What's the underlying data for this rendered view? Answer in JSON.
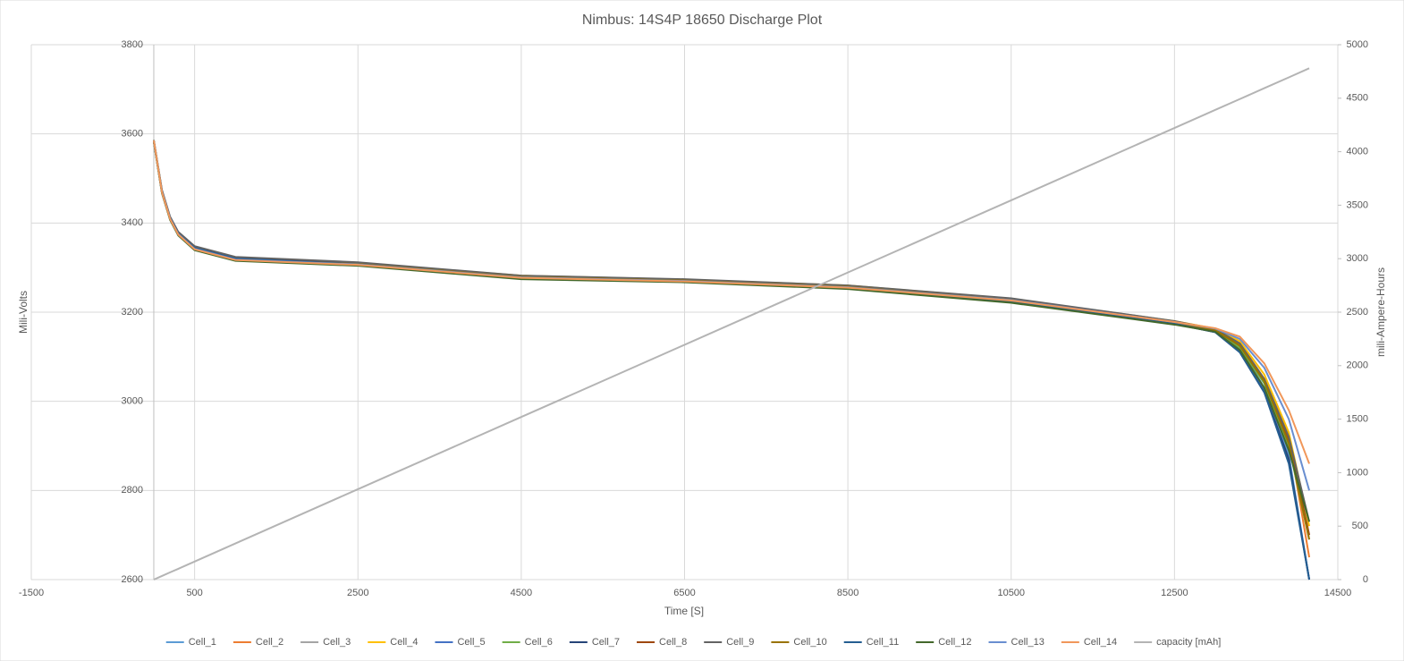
{
  "chart_data": {
    "type": "line",
    "title": "Nimbus: 14S4P 18650 Discharge Plot",
    "xlabel": "Time [S]",
    "ylabel": "Mili-Volts",
    "y2label": "mili-Ampere-Hours",
    "x": [
      0,
      100,
      200,
      300,
      500,
      1000,
      2500,
      4500,
      6500,
      8500,
      10500,
      12500,
      13000,
      13300,
      13600,
      13900,
      14150
    ],
    "xlim": [
      -1500,
      14500
    ],
    "xticks": [
      -1500,
      500,
      2500,
      4500,
      6500,
      8500,
      10500,
      12500,
      14500
    ],
    "ylim": [
      2600,
      3800
    ],
    "yticks": [
      2600,
      2800,
      3000,
      3200,
      3400,
      3600,
      3800
    ],
    "y2lim": [
      0,
      5000
    ],
    "y2ticks": [
      0,
      500,
      1000,
      1500,
      2000,
      2500,
      3000,
      3500,
      4000,
      4500,
      5000
    ],
    "grid": true,
    "legend": "bottom",
    "series": [
      {
        "name": "Cell_1",
        "color": "#5b9bd5",
        "values": [
          3583,
          3470,
          3410,
          3375,
          3342,
          3318,
          3307,
          3278,
          3270,
          3256,
          3226,
          3176,
          3158,
          3120,
          3030,
          2880,
          2600
        ]
      },
      {
        "name": "Cell_2",
        "color": "#ed7d31",
        "values": [
          3585,
          3468,
          3408,
          3373,
          3340,
          3316,
          3306,
          3277,
          3269,
          3255,
          3225,
          3176,
          3160,
          3130,
          3050,
          2920,
          2650
        ]
      },
      {
        "name": "Cell_3",
        "color": "#a5a5a5",
        "values": [
          3584,
          3470,
          3410,
          3375,
          3342,
          3318,
          3307,
          3278,
          3270,
          3256,
          3226,
          3176,
          3159,
          3125,
          3045,
          2910,
          2700
        ]
      },
      {
        "name": "Cell_4",
        "color": "#ffc000",
        "values": [
          3586,
          3472,
          3412,
          3377,
          3344,
          3320,
          3310,
          3282,
          3273,
          3260,
          3230,
          3180,
          3163,
          3135,
          3060,
          2930,
          2720
        ]
      },
      {
        "name": "Cell_5",
        "color": "#4472c4",
        "values": [
          3583,
          3469,
          3409,
          3374,
          3341,
          3317,
          3306,
          3277,
          3269,
          3255,
          3225,
          3175,
          3157,
          3115,
          3025,
          2870,
          2600
        ]
      },
      {
        "name": "Cell_6",
        "color": "#70ad47",
        "values": [
          3582,
          3468,
          3408,
          3373,
          3340,
          3316,
          3305,
          3275,
          3268,
          3253,
          3222,
          3173,
          3157,
          3120,
          3040,
          2900,
          2690
        ]
      },
      {
        "name": "Cell_7",
        "color": "#264478",
        "values": [
          3584,
          3471,
          3412,
          3378,
          3346,
          3322,
          3309,
          3278,
          3270,
          3255,
          3224,
          3174,
          3155,
          3110,
          3020,
          2870,
          2600
        ]
      },
      {
        "name": "Cell_8",
        "color": "#9e480e",
        "values": [
          3584,
          3470,
          3410,
          3375,
          3342,
          3318,
          3307,
          3278,
          3270,
          3256,
          3226,
          3176,
          3159,
          3125,
          3045,
          2910,
          2700
        ]
      },
      {
        "name": "Cell_9",
        "color": "#636363",
        "values": [
          3586,
          3474,
          3414,
          3380,
          3348,
          3324,
          3312,
          3282,
          3274,
          3260,
          3231,
          3180,
          3162,
          3130,
          3050,
          2920,
          2730
        ]
      },
      {
        "name": "Cell_10",
        "color": "#997300",
        "values": [
          3584,
          3470,
          3410,
          3375,
          3342,
          3318,
          3308,
          3279,
          3271,
          3257,
          3227,
          3177,
          3160,
          3125,
          3045,
          2905,
          2690
        ]
      },
      {
        "name": "Cell_11",
        "color": "#255e91",
        "values": [
          3583,
          3470,
          3411,
          3376,
          3344,
          3320,
          3307,
          3277,
          3269,
          3254,
          3224,
          3174,
          3155,
          3110,
          3020,
          2860,
          2600
        ]
      },
      {
        "name": "Cell_12",
        "color": "#43682b",
        "values": [
          3582,
          3467,
          3407,
          3372,
          3339,
          3315,
          3304,
          3274,
          3267,
          3252,
          3221,
          3172,
          3156,
          3115,
          3030,
          2890,
          2730
        ]
      },
      {
        "name": "Cell_13",
        "color": "#698ed0",
        "values": [
          3585,
          3470,
          3410,
          3375,
          3342,
          3318,
          3307,
          3278,
          3270,
          3256,
          3227,
          3178,
          3163,
          3140,
          3075,
          2960,
          2800
        ]
      },
      {
        "name": "Cell_14",
        "color": "#f1975a",
        "values": [
          3585,
          3469,
          3409,
          3374,
          3341,
          3317,
          3306,
          3277,
          3269,
          3255,
          3226,
          3178,
          3164,
          3145,
          3085,
          2980,
          2860
        ]
      },
      {
        "name": "capacity [mAh]",
        "color": "#b4b4b4",
        "axis": "y2",
        "values": [
          0,
          34,
          68,
          101,
          169,
          338,
          845,
          1520,
          2195,
          2871,
          3546,
          4222,
          4391,
          4492,
          4594,
          4695,
          4780
        ]
      }
    ]
  }
}
